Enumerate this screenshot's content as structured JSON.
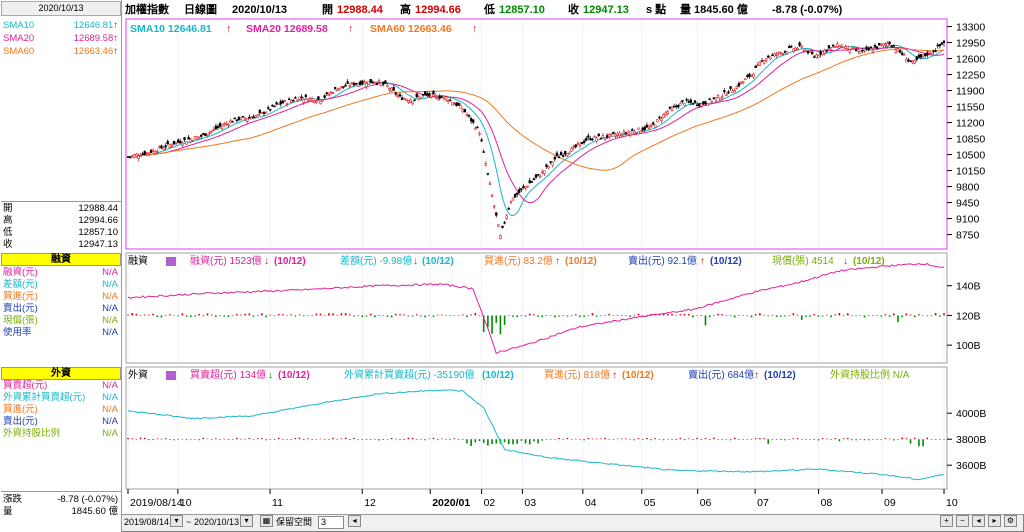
{
  "header": {
    "title": "加權指數",
    "period": "日線圖",
    "date": "2020/10/13",
    "open_label": "開",
    "open": "12988.44",
    "high_label": "高",
    "high": "12994.66",
    "low_label": "低",
    "low": "12857.10",
    "close_label": "收",
    "close": "12947.13",
    "close_unit": "s 點",
    "volume_label": "量",
    "volume": "1845.60 億",
    "change": "-8.78 (-0.07%)"
  },
  "left_panel": {
    "date": "2020/10/13",
    "sma": [
      {
        "label": "SMA10",
        "value": "12646.81",
        "arrow": "↑",
        "color": "#17b8c8"
      },
      {
        "label": "SMA20",
        "value": "12689.58",
        "arrow": "↑",
        "color": "#e0219a"
      },
      {
        "label": "SMA60",
        "value": "12663.46",
        "arrow": "↑",
        "color": "#f07820"
      }
    ],
    "ohlc": [
      {
        "label": "開",
        "value": "12988.44"
      },
      {
        "label": "高",
        "value": "12994.66"
      },
      {
        "label": "低",
        "value": "12857.10"
      },
      {
        "label": "收",
        "value": "12947.13"
      }
    ],
    "margin_title": "融資",
    "margin_rows": [
      {
        "label": "融資(元)",
        "value": "N/A",
        "color": "#e0219a"
      },
      {
        "label": "差額(元)",
        "value": "N/A",
        "color": "#17b8c8"
      },
      {
        "label": "買進(元)",
        "value": "N/A",
        "color": "#f07820"
      },
      {
        "label": "賣出(元)",
        "value": "N/A",
        "color": "#1f3fb0"
      },
      {
        "label": "現償(張)",
        "value": "N/A",
        "color": "#7ab000"
      },
      {
        "label": "使用率",
        "value": "N/A",
        "color": "#1f3fb0"
      }
    ],
    "foreign_title": "外資",
    "foreign_rows": [
      {
        "label": "買賣超(元)",
        "value": "N/A",
        "color": "#e0219a"
      },
      {
        "label": "外資累計買賣超(元)",
        "value": "N/A",
        "color": "#17b8c8"
      },
      {
        "label": "買進(元)",
        "value": "N/A",
        "color": "#f07820"
      },
      {
        "label": "賣出(元)",
        "value": "N/A",
        "color": "#1f3fb0"
      },
      {
        "label": "外資持股比例",
        "value": "N/A",
        "color": "#7ab000"
      }
    ],
    "change_label": "漲跌",
    "change_value": "-8.78 (-0.07%)",
    "volume_label": "量",
    "volume_value": "1845.60 億"
  },
  "price_panel": {
    "legend": [
      {
        "label": "SMA10 12646.81",
        "arrow": "↑",
        "color": "#17b8c8"
      },
      {
        "label": "SMA20 12689.58",
        "arrow": "↑",
        "color": "#e0219a"
      },
      {
        "label": "SMA60 12663.46",
        "arrow": "↑",
        "color": "#f07820"
      }
    ],
    "y_ticks": [
      "13300",
      "12950",
      "12600",
      "12250",
      "11900",
      "11550",
      "11200",
      "10850",
      "10500",
      "10150",
      "9800",
      "9450",
      "9100",
      "8750"
    ]
  },
  "margin_panel": {
    "title": "融資",
    "legend": [
      {
        "label": "融資(元) 1523億",
        "arrow": "↓",
        "date": "(10/12)",
        "color": "#e0219a"
      },
      {
        "label": "差額(元) -9.98億",
        "arrow": "↓",
        "date": "(10/12)",
        "color": "#17b8c8"
      },
      {
        "label": "買進(元) 83.2億",
        "arrow": "↑",
        "date": "(10/12)",
        "color": "#f07820"
      },
      {
        "label": "賣出(元) 92.1億",
        "arrow": "↑",
        "date": "(10/12)",
        "color": "#1f3fb0"
      },
      {
        "label": "現償(張) 4514",
        "arrow": "↓",
        "date": "(10/12)",
        "color": "#7ab000"
      }
    ],
    "y_ticks": [
      "140B",
      "120B",
      "100B"
    ]
  },
  "foreign_panel": {
    "title": "外資",
    "legend": [
      {
        "label": "買賣超(元) 134億",
        "arrow": "↓",
        "date": "(10/12)",
        "color": "#e0219a"
      },
      {
        "label": "外資累計買賣超(元) -35190億",
        "arrow": "",
        "date": "(10/12)",
        "color": "#17b8c8"
      },
      {
        "label": "買進(元) 818億",
        "arrow": "↑",
        "date": "(10/12)",
        "color": "#f07820"
      },
      {
        "label": "賣出(元) 684億",
        "arrow": "↑",
        "date": "(10/12)",
        "color": "#1f3fb0"
      },
      {
        "label": "外資持股比例 N/A",
        "arrow": "",
        "date": "",
        "color": "#7ab000"
      }
    ],
    "y_ticks": [
      "4000B",
      "3800B",
      "3600B"
    ]
  },
  "x_axis": {
    "labels": [
      "2019/08/14",
      "10",
      "11",
      "12",
      "2020/01",
      "02",
      "03",
      "04",
      "05",
      "06",
      "07",
      "08",
      "09",
      "10"
    ]
  },
  "bottom_bar": {
    "range_start": "2019/08/14",
    "range_sep": "~",
    "range_end": "2020/10/13",
    "keep_space_label": "保留空間",
    "keep_space_value": "3"
  },
  "chart_data": {
    "type": "candlestick",
    "x_range": [
      "2019/08/14",
      "2020/10/13"
    ],
    "price_ylim": [
      8500,
      13400
    ],
    "monthly_close": [
      {
        "month": "2019/08",
        "value": 10600
      },
      {
        "month": "2019/09",
        "value": 10850
      },
      {
        "month": "2019/10",
        "value": 11300
      },
      {
        "month": "2019/11",
        "value": 11550
      },
      {
        "month": "2019/12",
        "value": 12000
      },
      {
        "month": "2020/01",
        "value": 11500
      },
      {
        "month": "2020/02",
        "value": 11300
      },
      {
        "month": "2020/03",
        "value": 9700
      },
      {
        "month": "2020/04",
        "value": 10900
      },
      {
        "month": "2020/05",
        "value": 10950
      },
      {
        "month": "2020/06",
        "value": 11600
      },
      {
        "month": "2020/07",
        "value": 12700
      },
      {
        "month": "2020/08",
        "value": 12600
      },
      {
        "month": "2020/09",
        "value": 12500
      },
      {
        "month": "2020/10",
        "value": 12947
      }
    ],
    "anchors": [
      [
        0,
        10450
      ],
      [
        10,
        10550
      ],
      [
        22,
        10750
      ],
      [
        35,
        10900
      ],
      [
        50,
        11250
      ],
      [
        62,
        11350
      ],
      [
        72,
        11600
      ],
      [
        82,
        11750
      ],
      [
        92,
        11700
      ],
      [
        100,
        11950
      ],
      [
        108,
        12050
      ],
      [
        118,
        12110
      ],
      [
        124,
        12000
      ],
      [
        130,
        11750
      ],
      [
        136,
        11700
      ],
      [
        142,
        11800
      ],
      [
        152,
        11750
      ],
      [
        160,
        11500
      ],
      [
        168,
        11000
      ],
      [
        174,
        9600
      ],
      [
        178,
        8700
      ],
      [
        183,
        9500
      ],
      [
        190,
        9800
      ],
      [
        198,
        10100
      ],
      [
        205,
        10450
      ],
      [
        212,
        10600
      ],
      [
        220,
        10850
      ],
      [
        230,
        10900
      ],
      [
        240,
        11000
      ],
      [
        250,
        11100
      ],
      [
        258,
        11450
      ],
      [
        266,
        11650
      ],
      [
        274,
        11600
      ],
      [
        282,
        11750
      ],
      [
        290,
        11950
      ],
      [
        298,
        12250
      ],
      [
        304,
        12600
      ],
      [
        310,
        12700
      ],
      [
        316,
        12800
      ],
      [
        322,
        12850
      ],
      [
        328,
        12650
      ],
      [
        334,
        12800
      ],
      [
        340,
        12900
      ],
      [
        346,
        12800
      ],
      [
        352,
        12750
      ],
      [
        358,
        12850
      ],
      [
        364,
        12950
      ],
      [
        370,
        12700
      ],
      [
        375,
        12500
      ],
      [
        380,
        12650
      ],
      [
        386,
        12800
      ],
      [
        390,
        12947
      ]
    ],
    "margin_balance_ylim": [
      90,
      160
    ],
    "margin_balance_anchors": [
      [
        0,
        132
      ],
      [
        40,
        135
      ],
      [
        80,
        137
      ],
      [
        120,
        140
      ],
      [
        150,
        141
      ],
      [
        165,
        138
      ],
      [
        176,
        95
      ],
      [
        190,
        100
      ],
      [
        215,
        112
      ],
      [
        240,
        118
      ],
      [
        270,
        124
      ],
      [
        300,
        136
      ],
      [
        320,
        142
      ],
      [
        340,
        150
      ],
      [
        360,
        153
      ],
      [
        380,
        155
      ],
      [
        390,
        152
      ]
    ],
    "foreign_cum_ylim": [
      3440,
      4240
    ],
    "foreign_cum_anchors": [
      [
        0,
        4020
      ],
      [
        30,
        3960
      ],
      [
        60,
        3980
      ],
      [
        90,
        4070
      ],
      [
        120,
        4150
      ],
      [
        150,
        4180
      ],
      [
        160,
        4170
      ],
      [
        170,
        4040
      ],
      [
        180,
        3720
      ],
      [
        200,
        3660
      ],
      [
        230,
        3610
      ],
      [
        260,
        3560
      ],
      [
        300,
        3550
      ],
      [
        330,
        3570
      ],
      [
        360,
        3530
      ],
      [
        378,
        3490
      ],
      [
        390,
        3530
      ]
    ]
  }
}
